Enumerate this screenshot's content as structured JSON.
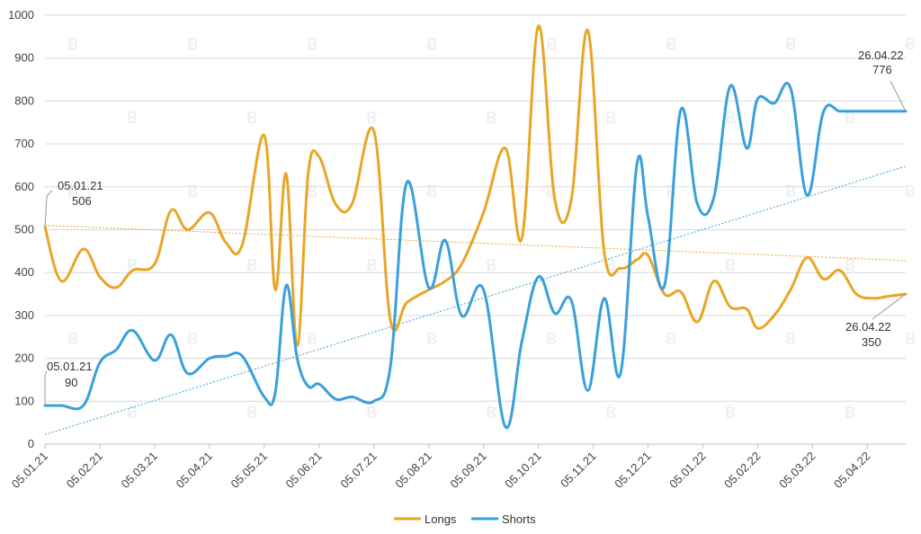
{
  "chart_data": {
    "type": "line",
    "title": "",
    "xlabel": "",
    "ylabel": "",
    "ylim": [
      0,
      1000
    ],
    "yticks": [
      0,
      100,
      200,
      300,
      400,
      500,
      600,
      700,
      800,
      900,
      1000
    ],
    "x_tick_labels": [
      "05.01.21",
      "05.02.21",
      "05.03.21",
      "05.04.21",
      "05.05.21",
      "05.06.21",
      "05.07.21",
      "05.08.21",
      "05.09.21",
      "05.10.21",
      "05.11.21",
      "05.12.21",
      "05.01.22",
      "05.02.22",
      "05.03.22",
      "05.04.22"
    ],
    "grid": true,
    "legend": {
      "position": "bottom",
      "entries": [
        "Longs",
        "Shorts"
      ]
    },
    "colors": {
      "longs": "#e8a628",
      "shorts": "#3aa0da",
      "grid": "#d9d9d9"
    },
    "x": [
      0,
      0.3,
      0.7,
      1,
      1.3,
      1.6,
      2,
      2.3,
      2.6,
      3,
      3.3,
      3.6,
      4,
      4.2,
      4.4,
      4.6,
      4.8,
      5,
      5.3,
      5.6,
      6,
      6.3,
      6.6,
      7,
      7.3,
      7.6,
      8,
      8.4,
      8.7,
      9,
      9.3,
      9.6,
      9.9,
      10.2,
      10.5,
      10.8,
      11,
      11.3,
      11.6,
      11.9,
      12.2,
      12.5,
      12.8,
      13,
      13.3,
      13.6,
      13.9,
      14.2,
      14.5,
      14.8,
      15.1,
      15.4,
      15.7
    ],
    "series": [
      {
        "name": "Longs",
        "values": [
          506,
          380,
          455,
          390,
          365,
          405,
          420,
          545,
          500,
          540,
          470,
          465,
          720,
          360,
          630,
          230,
          630,
          670,
          560,
          560,
          730,
          290,
          330,
          360,
          380,
          420,
          540,
          690,
          480,
          975,
          570,
          570,
          965,
          450,
          410,
          430,
          440,
          350,
          355,
          285,
          380,
          320,
          315,
          270,
          300,
          360,
          435,
          385,
          405,
          350,
          340,
          345,
          350
        ],
        "trend": [
          510,
          428
        ]
      },
      {
        "name": "Shorts",
        "values": [
          90,
          90,
          90,
          190,
          220,
          265,
          195,
          255,
          165,
          200,
          205,
          205,
          110,
          120,
          370,
          200,
          135,
          140,
          105,
          110,
          100,
          180,
          610,
          365,
          475,
          300,
          360,
          40,
          240,
          390,
          305,
          335,
          125,
          340,
          165,
          655,
          530,
          370,
          780,
          560,
          575,
          835,
          690,
          805,
          795,
          830,
          580,
          775,
          776,
          776,
          776,
          776,
          776
        ],
        "trend": [
          22,
          648
        ]
      }
    ],
    "annotations": [
      {
        "date": "05.01.21",
        "value": "506"
      },
      {
        "date": "05.01.21",
        "value": "90"
      },
      {
        "date": "26.04.22",
        "value": "776"
      },
      {
        "date": "26.04.22",
        "value": "350"
      }
    ]
  }
}
